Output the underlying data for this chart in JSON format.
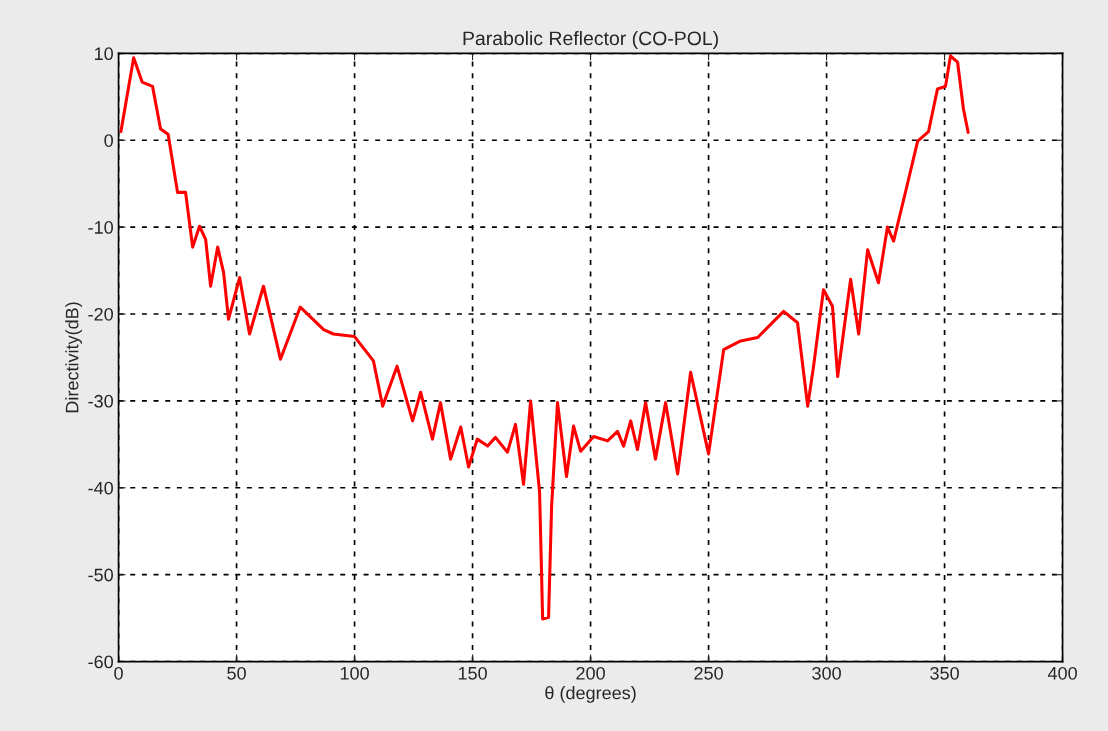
{
  "chart_data": {
    "type": "line",
    "title": "Parabolic Reflector (CO-POL)",
    "xlabel": "θ (degrees)",
    "ylabel": "Directivity(dB)",
    "xlim": [
      0,
      400
    ],
    "ylim": [
      -60,
      10
    ],
    "xticks": [
      0,
      50,
      100,
      150,
      200,
      250,
      300,
      350,
      400
    ],
    "yticks": [
      -60,
      -50,
      -40,
      -30,
      -20,
      -10,
      0,
      10
    ],
    "grid": true,
    "line_style": "solid",
    "marker": "none",
    "series": [
      {
        "color": "#ff0000",
        "x": [
          1,
          6.4,
          10,
          14.4,
          17.8,
          21,
          25,
          28.4,
          31.4,
          34.3,
          36.9,
          39,
          42,
          44.5,
          46.6,
          51.3,
          55.5,
          61.4,
          68.6,
          77,
          86.9,
          91,
          100,
          108,
          111.9,
          118,
          124.6,
          128,
          133,
          136.4,
          140.7,
          145,
          148.3,
          152,
          156.4,
          159.7,
          164.8,
          168.2,
          171.6,
          174.6,
          178.4,
          179.7,
          182.2,
          183.5,
          186,
          189.8,
          192.8,
          195.8,
          201.3,
          207.2,
          211.4,
          214,
          217,
          219.9,
          223.3,
          227.5,
          231.8,
          236.9,
          242.4,
          250,
          256.4,
          263.6,
          270.8,
          281.8,
          287.7,
          292,
          294.5,
          298.7,
          302.5,
          304.7,
          310.2,
          313.6,
          317.4,
          322,
          325.8,
          328.4,
          333.5,
          338.6,
          343.2,
          347,
          350.4,
          352.5,
          355.5,
          358,
          360
        ],
        "values": [
          1,
          9.5,
          6.7,
          6.2,
          1.3,
          0.7,
          -6,
          -6,
          -12.3,
          -9.9,
          -11.4,
          -16.8,
          -12.3,
          -15.2,
          -20.6,
          -15.8,
          -22.3,
          -16.8,
          -25.2,
          -19.2,
          -21.8,
          -22.3,
          -22.6,
          -25.4,
          -30.6,
          -26,
          -32.3,
          -29,
          -34.4,
          -30.2,
          -36.7,
          -33,
          -37.6,
          -34.4,
          -35.2,
          -34.2,
          -35.9,
          -32.7,
          -39.6,
          -30,
          -40.5,
          -55.1,
          -54.9,
          -42.1,
          -30.2,
          -38.7,
          -32.9,
          -35.8,
          -34.1,
          -34.6,
          -33.5,
          -35.2,
          -32.3,
          -35.6,
          -30.2,
          -36.7,
          -30.2,
          -38.4,
          -26.7,
          -36.1,
          -24.1,
          -23.1,
          -22.7,
          -19.7,
          -21,
          -30.6,
          -26,
          -17.2,
          -19.1,
          -27.2,
          -16,
          -22.3,
          -12.6,
          -16.4,
          -10,
          -11.6,
          -5.9,
          -0.1,
          1,
          5.9,
          6.2,
          9.7,
          9,
          3.6,
          0.9
        ]
      }
    ]
  }
}
